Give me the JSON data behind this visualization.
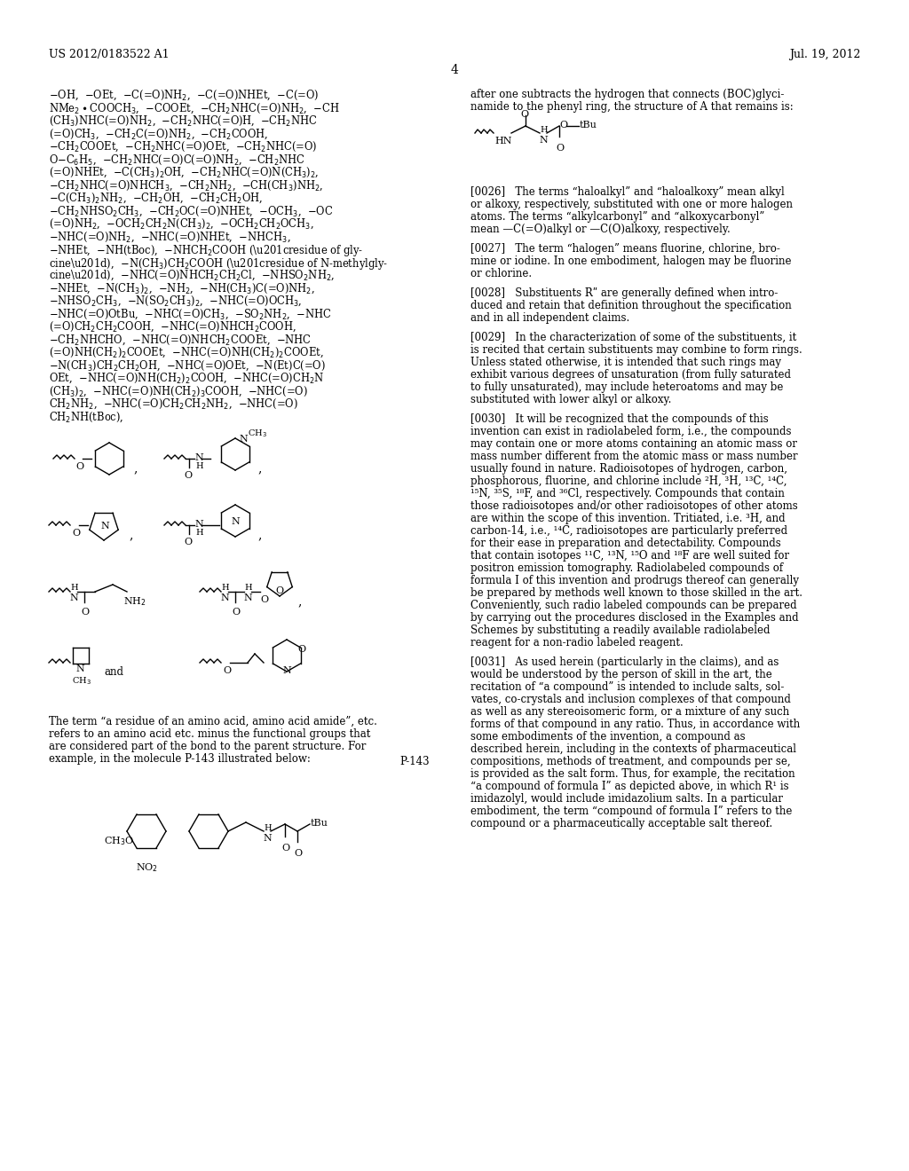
{
  "page_num": "4",
  "patent_num": "US 2012/0183522 A1",
  "patent_date": "Jul. 19, 2012",
  "background_color": "#ffffff",
  "text_color": "#000000",
  "font_size_header": 10,
  "font_size_body": 8.5,
  "left_col_text": [
    "—OH, —OEt, —C(=O)NH₂, —C(=O)NHEt, —C(=O)NMe₂•COOCH₃, —COOEt, —CH₂NHC(=O)NH₂, —CH(CH₃)NHC(=O)NH₂, —CH₂NHC(=O)H, —CH₂NHC(=O)CH₃, —CH₂C(=O)NH₂, —CH₂COOH, —CH₂COOEt, —CH₂NHC(=O)OEt, —CH₂NHC(=O)O—C₆H₅, —CH₂NHC(=O)C(=O)NH₂, —CH₂NHC(=O)NHEt, —C(CH₃)₂OH, —CH₂NHC(=O)N(CH₃)₂, —CH₂NHC(=O)NHCH₃, —CH₂NH₂, —CH(CH₃)NH₂, —C(CH₃)₂NH₂, —CH₂OH, —CH₂CH₂OH, —CH₂NHSO₂CH₃, —CH₂OC(=O)NHEt, —OCH₃, —OC(=O)NH₂, —OCH₂CH₂N(CH₃)₂, —OCH₂CH₂OCH₃, —NHC(=O)NH₂, —NHC(=O)NHEt, —NHCH₃, —NHEt, —NH(tBoc), —NHCH₂COOH (“residue of glycine”), —N(CH₃)CH₂COOH (“residue of N-methylglycine”), —NHC(=O)NHCH₂CH₂Cl, —NHSO₂NH₂, —NHEt, —N(CH₃)₂, —NH₂, —NH(CH₃)C(=O)NH₂, —NHSO₂CH₃, —N(SO₂CH₃)₂, —NHC(=O)OCH₃, —NHC(=O)OtBu, —NHC(=O)CH₃, —SO₂NH₂, —NHC(=O)CH₂CH₂COOH, —NHC(=O)NHCH₂COOH, —CH₂NHCHO, —NHC(=O)NHCH₂COOEt, —NHC(=O)NH(CH₂)₂COOEt, —NHC(=O)NH(CH₂)₂COOEt, —N(CH₃)CH₂CH₂OH, —NHC(=O)OEt, —N(Et)C(=O)OEt, —NHC(=O)NH(CH₂)₂COOH, —NHC(=O)CH₂N(CH₃)₂, —NHC(=O)NH(CH₂)₃COOH, —NHC(=O)CH₂NH₂, —NHC(=O)CH₂NH(tBoc),",
    "CH₂NH₂, —NHC(=O)CH₂CH₂NH₂, —NHC(=O)CH₂NH(tBoc),"
  ],
  "right_col_intro": "after one subtracts the hydrogen that connects (BOC)glyci-\nnamide to the phenyl ring, the structure of A that remains is:",
  "para_0026": "[0026]    The terms “haloalkyl” and “haloalkoxy” mean alkyl\nor alkoxy, respectively, substituted with one or more halogen\natoms. The terms “alkylcarbonyl” and “alkoxycarbonyl”\nmean —C(=O)alkyl or —C(O)alkoxy, respectively.",
  "para_0027": "[0027]    The term “halogen” means fluorine, chlorine, bro-\nmine or iodine. In one embodiment, halogen may be fluorine\nor chlorine.",
  "para_0028": "[0028]    Substituents Rʺ are generally defined when intro-\nduced and retain that definition throughout the specification\nand in all independent claims.",
  "para_0029": "[0029]    In the characterization of some of the substituents, it\nis recited that certain substituents may combine to form rings.\nUnless stated otherwise, it is intended that such rings may\nexhibit various degrees of unsaturation (from fully saturated\nto fully unsaturated), may include heteroatoms and may be\nsubstituted with lower alkyl or alkoxy.",
  "para_0030": "[0030]    It will be recognized that the compounds of this\ninvention can exist in radiolabeled form, i.e., the compounds\nmay contain one or more atoms containing an atomic mass or\nmass number different from the atomic mass or mass number\nusually found in nature. Radioisotopes of hydrogen, carbon,\nphosphorous, fluorine, and chlorine include ²H, ³H, ¹³C, ¹⁴C,\n¹⁵N, ³⁵S, ¹⁸F, and ³⁶Cl, respectively. Compounds that contain\nthose radioisotopes and/or other radioisotopes of other atoms\nare within the scope of this invention. Tritiated, i.e. ³H, and\ncarbon-14, i.e., ¹⁴C, radioisotopes are particularly preferred\nfor their ease in preparation and detectability. Compounds\nthat contain isotopes ¹¹C, ¹³N, ¹⁵O and ¹⁸F are well suited for\npositron emission tomography. Radiolabeled compounds of\nformula I of this invention and prodrugs thereof can generally\nbe prepared by methods well known to those skilled in the art.\nConveniently, such radio labeled compounds can be prepared\nby carrying out the procedures disclosed in the Examples and\nSchemes by substituting a readily available radiolabeled\nreagent for a non-radio labeled reagent.",
  "para_0031": "[0031]    As used herein (particularly in the claims), and as\nwould be understood by the person of skill in the art, the\nrecitation of “a compound” is intended to include salts, sol-\nvates, co-crystals and inclusion complexes of that compound\nas well as any stereoisomeric form, or a mixture of any such\nforms of that compound in any ratio. Thus, in accordance with\nsome embodiments of the invention, a compound as\ndescribed herein, including in the contexts of pharmaceutical\ncompositions, methods of treatment, and compounds per se,\nis provided as the salt form. Thus, for example, the recitation\n“a compound of formula I” as depicted above, in which R¹ is\nimidazolyl, would include imidazolium salts. In a particular\nembodiment, the term “compound of formula I” refers to the\ncompound or a pharmaceutically acceptable salt thereof.",
  "amino_acid_note": "The term “a residue of an amino acid, amino acid amide”, etc.\nrefers to an amino acid etc. minus the functional groups that\nare considered part of the bond to the parent structure. For\nexample, in the molecule P-143 illustrated below:",
  "p143_label": "P-143"
}
